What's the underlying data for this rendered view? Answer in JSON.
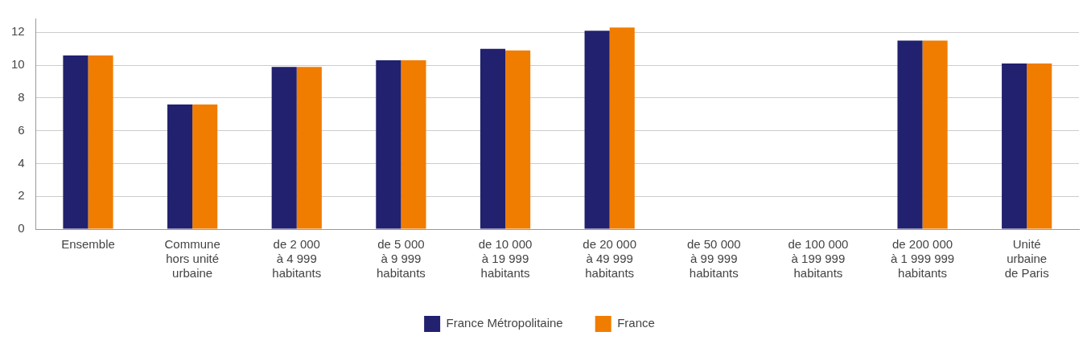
{
  "chart_data": {
    "type": "bar",
    "categories": [
      "Ensemble",
      "Commune\nhors unité\nurbaine",
      "de 2 000\nà 4 999\nhabitants",
      "de 5 000\nà 9 999\nhabitants",
      "de 10 000\nà 19 999\nhabitants",
      "de 20 000\nà 49 999\nhabitants",
      "de 50 000\nà 99 999\nhabitants",
      "de 100 000\nà 199 999\nhabitants",
      "de 200 000\nà 1 999 999\nhabitants",
      "Unité\nurbaine\nde Paris"
    ],
    "series": [
      {
        "name": "France Métropolitaine",
        "color": "#21216f",
        "values": [
          10.6,
          7.6,
          9.9,
          10.3,
          11.0,
          12.1,
          null,
          null,
          11.5,
          10.1
        ]
      },
      {
        "name": "France",
        "color": "#f07d00",
        "values": [
          10.6,
          7.6,
          9.9,
          10.3,
          10.9,
          12.3,
          null,
          null,
          11.5,
          10.1
        ]
      }
    ],
    "ylim": [
      0,
      12.85
    ],
    "yticks": [
      0,
      2,
      4,
      6,
      8,
      10,
      12
    ],
    "grid": "y",
    "legend": "bottom"
  }
}
